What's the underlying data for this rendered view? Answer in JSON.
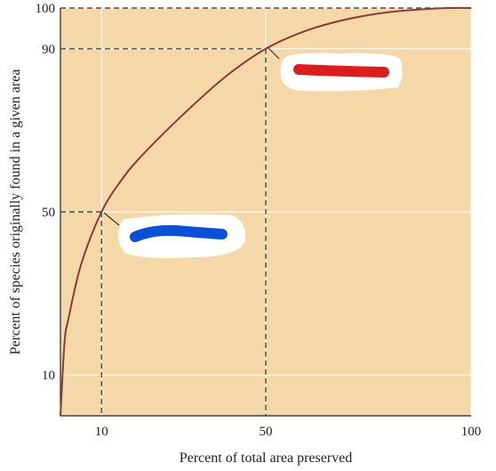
{
  "chart_data": {
    "type": "line",
    "title": "",
    "xlabel": "Percent of total area preserved",
    "ylabel": "Percent of species originally found in a given area",
    "xlim": [
      0,
      100
    ],
    "ylim": [
      0,
      100
    ],
    "x_ticks": [
      "10",
      "50",
      "100"
    ],
    "y_ticks": [
      "10",
      "50",
      "90",
      "100"
    ],
    "grid": true,
    "series": [
      {
        "x": [
          0,
          1,
          2,
          5,
          10,
          15,
          20,
          30,
          40,
          50,
          60,
          70,
          80,
          90,
          95,
          100
        ],
        "y": [
          0,
          18,
          24,
          37,
          50,
          58,
          64,
          74,
          83,
          90,
          94.5,
          97.3,
          99,
          99.8,
          100,
          100
        ]
      }
    ],
    "reference_points": [
      {
        "x": 10,
        "y": 50
      },
      {
        "x": 50,
        "y": 90
      }
    ],
    "colors": {
      "plot_background": "#f5d8a8",
      "curve": "#8b3a3a",
      "grid": "#ffffff",
      "reference_lines": "#333333",
      "red_mark": "#dd1c1c",
      "blue_mark": "#0a50d8",
      "redaction_patch": "#ffffff"
    }
  }
}
